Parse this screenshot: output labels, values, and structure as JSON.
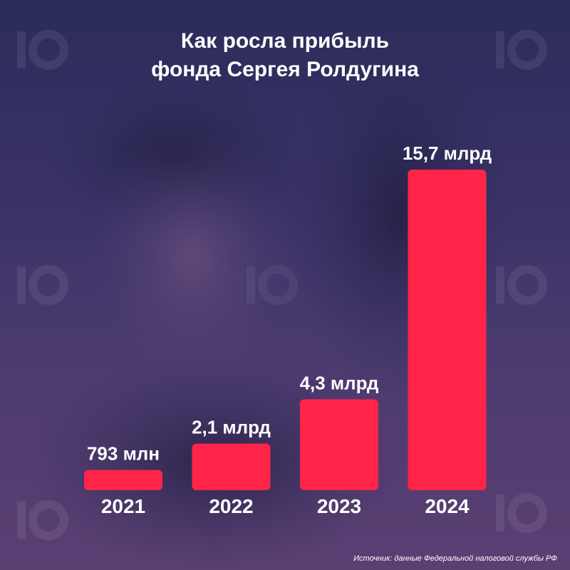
{
  "title_lines": [
    "Как росла прибыль",
    "фонда Сергея Ролдугина"
  ],
  "source": "Источник: данные Федеральной налоговой службы РФ",
  "colors": {
    "bar": "#ff2448",
    "text": "#ffffff"
  },
  "chart_data": {
    "type": "bar",
    "title": "Как росла прибыль фонда Сергея Ролдугина",
    "categories": [
      "2021",
      "2022",
      "2023",
      "2024"
    ],
    "values": [
      0.793,
      2.1,
      4.3,
      15.7
    ],
    "unit": "billion RUB",
    "data_labels": [
      "793 млн",
      "2,1 млрд",
      "4,3 млрд",
      "15,7 млрд"
    ],
    "xlabel": "",
    "ylabel": "",
    "ylim": [
      0,
      15.7
    ],
    "grid": false,
    "legend": "none"
  }
}
